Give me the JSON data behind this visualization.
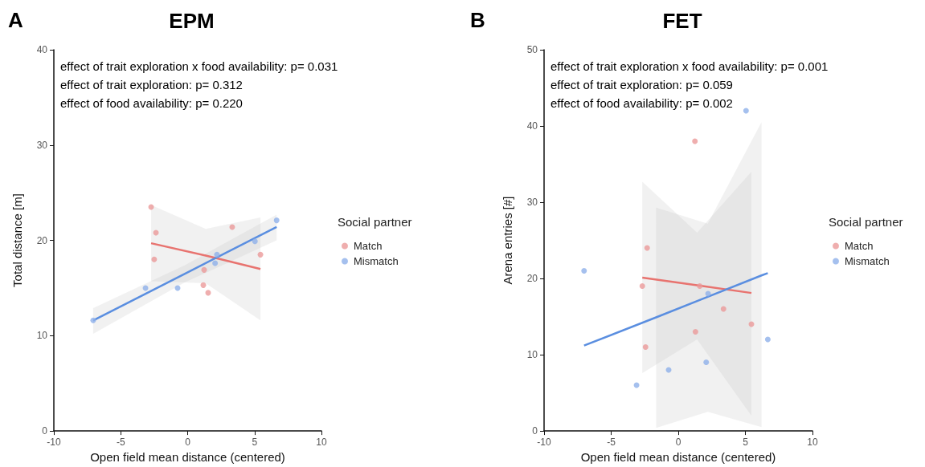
{
  "chart_data": [
    {
      "type": "scatter",
      "title": "EPM",
      "xlabel": "Open field mean distance (centered)",
      "ylabel": "Total distance [m]",
      "legend_title": "Social partner",
      "legend": "right",
      "marker": "circle",
      "grid": false,
      "annotations": [
        "A",
        "effect of trait exploration x food availability: p= 0.031",
        "effect of trait exploration: p= 0.312",
        "effect of food availability: p= 0.220"
      ],
      "xlim": [
        -10,
        10
      ],
      "xticks": [
        -10,
        -5,
        0,
        5,
        10
      ],
      "ylim": [
        0,
        40
      ],
      "yticks": [
        0,
        10,
        20,
        30,
        40
      ],
      "series": [
        {
          "name": "Match",
          "color": "#eb9a9a",
          "x": [
            -2.73,
            -2.37,
            -2.5,
            1.23,
            1.17,
            1.53,
            3.33,
            5.44
          ],
          "values": [
            23.5,
            20.8,
            18.0,
            16.9,
            15.3,
            14.5,
            21.4,
            18.5
          ]
        },
        {
          "name": "Mismatch",
          "color": "#8fb0ea",
          "x": [
            -7.06,
            -3.15,
            -0.75,
            2.19,
            2.05,
            5.03,
            6.65
          ],
          "values": [
            11.6,
            15.0,
            15.0,
            18.5,
            17.6,
            19.9,
            22.1
          ]
        },
        {
          "type": "line",
          "marker": "none",
          "color": "#e8736f",
          "x": [
            -2.73,
            1.35,
            5.44
          ],
          "values": [
            19.7,
            18.4,
            17.0
          ],
          "lower": [
            15.7,
            15.5,
            11.6
          ],
          "upper": [
            23.7,
            21.2,
            22.4
          ]
        },
        {
          "type": "line",
          "marker": "none",
          "color": "#5a8ee0",
          "x": [
            -7.06,
            -0.2,
            6.65
          ],
          "values": [
            11.6,
            16.5,
            21.4
          ],
          "lower": [
            10.2,
            15.6,
            20.0
          ],
          "upper": [
            12.9,
            17.4,
            22.7
          ]
        }
      ]
    },
    {
      "type": "scatter",
      "title": "FET",
      "xlabel": "Open field mean distance (centered)",
      "ylabel": "Arena entries [#]",
      "legend_title": "Social partner",
      "legend": "right",
      "marker": "circle",
      "grid": false,
      "annotations": [
        "B",
        "effect of trait exploration x food availability: p= 0.001",
        "effect of trait exploration: p= 0.059",
        "effect of food availability: p= 0.002"
      ],
      "xlim": [
        -10,
        10
      ],
      "xticks": [
        -10,
        -5,
        0,
        5,
        10
      ],
      "ylim": [
        0,
        50
      ],
      "yticks": [
        0,
        10,
        20,
        30,
        40,
        50
      ],
      "series": [
        {
          "name": "Match",
          "color": "#eb9a9a",
          "x": [
            -2.32,
            -2.68,
            -2.44,
            1.24,
            1.6,
            1.28,
            3.37,
            5.45
          ],
          "values": [
            24,
            19,
            11,
            38,
            19,
            13,
            16,
            14
          ]
        },
        {
          "name": "Mismatch",
          "color": "#8fb0ea",
          "x": [
            -7.02,
            -3.11,
            -0.72,
            2.08,
            2.22,
            5.05,
            6.67
          ],
          "values": [
            21,
            6,
            8,
            9,
            18,
            42,
            12
          ]
        },
        {
          "type": "line",
          "marker": "none",
          "color": "#e8736f",
          "x": [
            -2.68,
            1.4,
            5.45
          ],
          "values": [
            20.1,
            19.1,
            18.1
          ],
          "lower": [
            7.6,
            12,
            2
          ],
          "upper": [
            32.7,
            26,
            34
          ]
        },
        {
          "type": "line",
          "marker": "none",
          "color": "#5a8ee0",
          "x": [
            -7.02,
            -1.65,
            2.2,
            6.2,
            6.67
          ],
          "values": [
            11.2,
            14.9,
            17.6,
            20.4,
            20.7
          ],
          "lower": [
            null,
            0.4,
            2.5,
            0.5,
            null
          ],
          "upper": [
            null,
            29.3,
            27.2,
            40.5,
            null
          ]
        }
      ]
    }
  ]
}
